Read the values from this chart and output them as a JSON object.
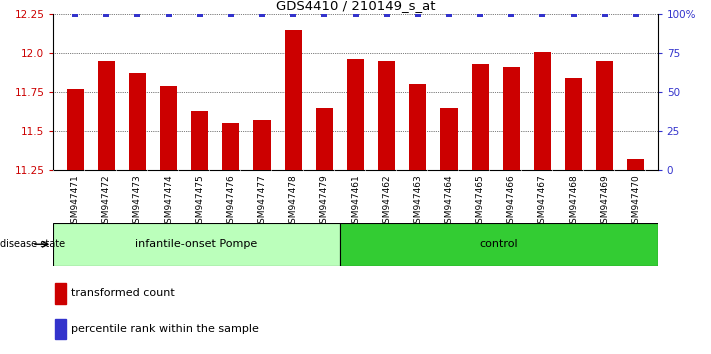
{
  "title": "GDS4410 / 210149_s_at",
  "samples": [
    "GSM947471",
    "GSM947472",
    "GSM947473",
    "GSM947474",
    "GSM947475",
    "GSM947476",
    "GSM947477",
    "GSM947478",
    "GSM947479",
    "GSM947461",
    "GSM947462",
    "GSM947463",
    "GSM947464",
    "GSM947465",
    "GSM947466",
    "GSM947467",
    "GSM947468",
    "GSM947469",
    "GSM947470"
  ],
  "red_values": [
    11.77,
    11.95,
    11.87,
    11.79,
    11.63,
    11.55,
    11.57,
    12.15,
    11.65,
    11.96,
    11.95,
    11.8,
    11.65,
    11.93,
    11.91,
    12.01,
    11.84,
    11.95,
    11.32
  ],
  "ylim_left": [
    11.25,
    12.25
  ],
  "ylim_right": [
    0,
    100
  ],
  "yticks_left": [
    11.25,
    11.5,
    11.75,
    12.0,
    12.25
  ],
  "yticks_right": [
    0,
    25,
    50,
    75,
    100
  ],
  "ytick_labels_right": [
    "0",
    "25",
    "50",
    "75",
    "100%"
  ],
  "bar_color": "#cc0000",
  "blue_color": "#3333cc",
  "group1_label": "infantile-onset Pompe",
  "group2_label": "control",
  "group1_count": 9,
  "group2_count": 10,
  "disease_state_label": "disease state",
  "legend_red": "transformed count",
  "legend_blue": "percentile rank within the sample",
  "group1_bg": "#bbffbb",
  "group2_bg": "#33cc33",
  "tick_bg": "#cccccc",
  "blue_marker_size": 5
}
